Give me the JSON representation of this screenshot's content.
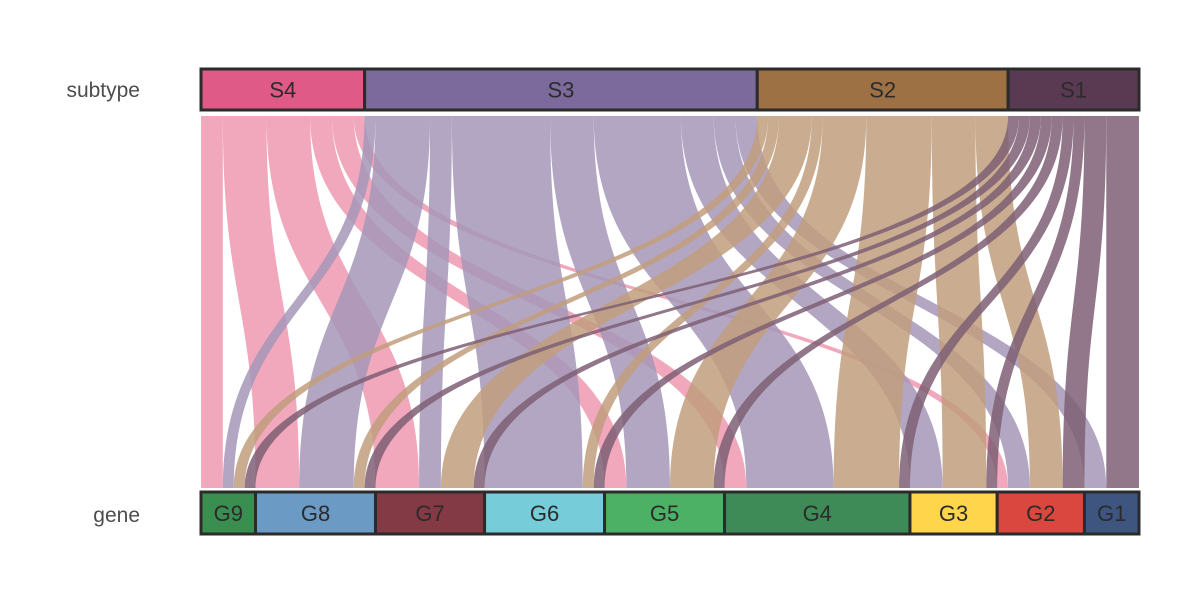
{
  "axes": {
    "top_label": "subtype",
    "bottom_label": "gene"
  },
  "top_nodes": [
    {
      "id": "S4",
      "label": "S4",
      "color": "#E05A87",
      "ribbon": "#EE98B0"
    },
    {
      "id": "S3",
      "label": "S3",
      "color": "#7B6A9B",
      "ribbon": "#A596B8"
    },
    {
      "id": "S2",
      "label": "S2",
      "color": "#9E7145",
      "ribbon": "#C19E7C"
    },
    {
      "id": "S1",
      "label": "S1",
      "color": "#5A3952",
      "ribbon": "#7E5F74"
    }
  ],
  "bottom_nodes": [
    {
      "id": "G9",
      "label": "G9",
      "color": "#3A8E4F"
    },
    {
      "id": "G8",
      "label": "G8",
      "color": "#6B9AC4"
    },
    {
      "id": "G7",
      "label": "G7",
      "color": "#843A44"
    },
    {
      "id": "G6",
      "label": "G6",
      "color": "#76CCD9"
    },
    {
      "id": "G5",
      "label": "G5",
      "color": "#4CB164"
    },
    {
      "id": "G4",
      "label": "G4",
      "color": "#3F8B58"
    },
    {
      "id": "G3",
      "label": "G3",
      "color": "#FFD54C"
    },
    {
      "id": "G2",
      "label": "G2",
      "color": "#D9473F"
    },
    {
      "id": "G1",
      "label": "G1",
      "color": "#3E5580"
    }
  ],
  "flows": [
    {
      "from": "S4",
      "to": "G9",
      "value": 2
    },
    {
      "from": "S4",
      "to": "G8",
      "value": 4
    },
    {
      "from": "S4",
      "to": "G7",
      "value": 4
    },
    {
      "from": "S4",
      "to": "G5",
      "value": 2
    },
    {
      "from": "S4",
      "to": "G4",
      "value": 2
    },
    {
      "from": "S4",
      "to": "G2",
      "value": 1
    },
    {
      "from": "S3",
      "to": "G9",
      "value": 1
    },
    {
      "from": "S3",
      "to": "G8",
      "value": 5
    },
    {
      "from": "S3",
      "to": "G7",
      "value": 2
    },
    {
      "from": "S3",
      "to": "G6",
      "value": 9
    },
    {
      "from": "S3",
      "to": "G5",
      "value": 4
    },
    {
      "from": "S3",
      "to": "G4",
      "value": 8
    },
    {
      "from": "S3",
      "to": "G3",
      "value": 3
    },
    {
      "from": "S3",
      "to": "G2",
      "value": 2
    },
    {
      "from": "S3",
      "to": "G1",
      "value": 2
    },
    {
      "from": "S2",
      "to": "G9",
      "value": 1
    },
    {
      "from": "S2",
      "to": "G8",
      "value": 1
    },
    {
      "from": "S2",
      "to": "G7",
      "value": 3
    },
    {
      "from": "S2",
      "to": "G6",
      "value": 1
    },
    {
      "from": "S2",
      "to": "G5",
      "value": 4
    },
    {
      "from": "S2",
      "to": "G4",
      "value": 6
    },
    {
      "from": "S2",
      "to": "G3",
      "value": 4
    },
    {
      "from": "S2",
      "to": "G2",
      "value": 3
    },
    {
      "from": "S1",
      "to": "G9",
      "value": 1
    },
    {
      "from": "S1",
      "to": "G8",
      "value": 1
    },
    {
      "from": "S1",
      "to": "G7",
      "value": 1
    },
    {
      "from": "S1",
      "to": "G6",
      "value": 1
    },
    {
      "from": "S1",
      "to": "G5",
      "value": 1
    },
    {
      "from": "S1",
      "to": "G4",
      "value": 1
    },
    {
      "from": "S1",
      "to": "G3",
      "value": 1
    },
    {
      "from": "S1",
      "to": "G2",
      "value": 2
    },
    {
      "from": "S1",
      "to": "G1",
      "value": 3
    }
  ]
}
